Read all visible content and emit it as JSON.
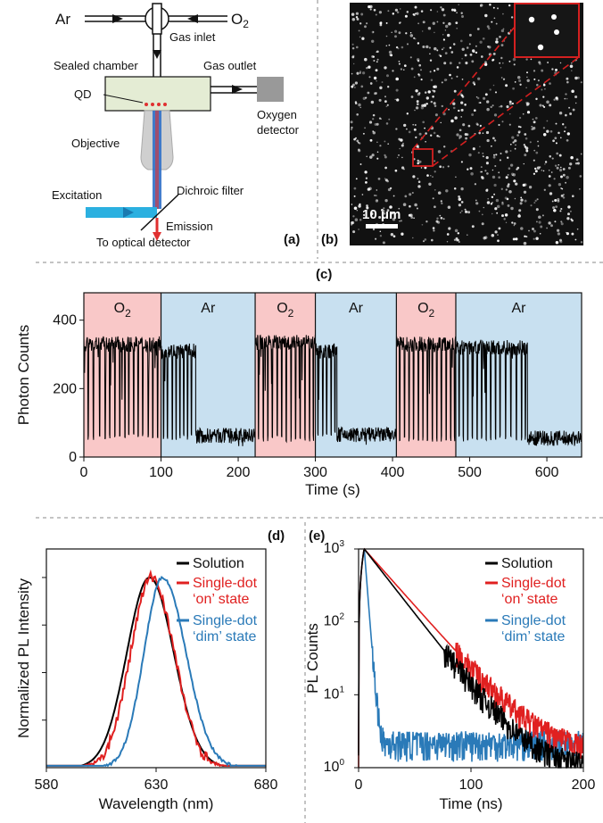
{
  "panel_labels": {
    "a": "(a)",
    "b": "(b)",
    "c": "(c)",
    "d": "(d)",
    "e": "(e)"
  },
  "panel_a": {
    "gas_in_left": "Ar",
    "gas_in_right": "O",
    "gas_in_right_sub": "2",
    "gas_inlet": "Gas inlet",
    "sealed_chamber": "Sealed chamber",
    "gas_outlet": "Gas outlet",
    "qd": "QD",
    "oxygen_detector_1": "Oxygen",
    "oxygen_detector_2": "detector",
    "objective": "Objective",
    "excitation": "Excitation",
    "dichroic_filter": "Dichroic filter",
    "emission": "Emission",
    "optical_detector": "To optical detector",
    "colors": {
      "chamber": "#e4ecd4",
      "beam": "#2bb0e0",
      "emission": "#e03030",
      "detector": "#999999"
    }
  },
  "panel_b": {
    "scale_bar": "10 μm",
    "colors": {
      "background": "#111111",
      "dots": "#ffffff",
      "inset_box": "#d42020"
    }
  },
  "chart_data": [
    {
      "id": "c",
      "type": "line",
      "xlabel": "Time (s)",
      "ylabel": "Photon Counts",
      "xlim": [
        0,
        645
      ],
      "ylim": [
        0,
        480
      ],
      "xticks": [
        0,
        100,
        200,
        300,
        400,
        500,
        600
      ],
      "yticks": [
        0,
        200,
        400
      ],
      "grid": false,
      "regions": [
        {
          "label": "O",
          "sub": "2",
          "start": 0,
          "end": 100,
          "color": "#f9c8c8"
        },
        {
          "label": "Ar",
          "sub": "",
          "start": 100,
          "end": 222,
          "color": "#c8e0f0"
        },
        {
          "label": "O",
          "sub": "2",
          "start": 222,
          "end": 300,
          "color": "#f9c8c8"
        },
        {
          "label": "Ar",
          "sub": "",
          "start": 300,
          "end": 405,
          "color": "#c8e0f0"
        },
        {
          "label": "O",
          "sub": "2",
          "start": 405,
          "end": 482,
          "color": "#f9c8c8"
        },
        {
          "label": "Ar",
          "sub": "",
          "start": 482,
          "end": 645,
          "color": "#c8e0f0"
        }
      ],
      "segments": [
        {
          "start": 0,
          "end": 100,
          "on_level": 330,
          "off_level": 50,
          "blinks": [
            5,
            12,
            20,
            27,
            33,
            40,
            46,
            53,
            58,
            64,
            70,
            76,
            83,
            89,
            95
          ]
        },
        {
          "start": 100,
          "end": 145,
          "on_level": 310,
          "off_level": 50,
          "blinks": [
            103,
            108,
            114,
            119,
            124,
            129,
            134,
            139
          ]
        },
        {
          "start": 145,
          "end": 222,
          "on_level": 62,
          "off_level": 45,
          "blinks": []
        },
        {
          "start": 222,
          "end": 300,
          "on_level": 335,
          "off_level": 45,
          "blinks": [
            226,
            232,
            238,
            244,
            250,
            256,
            262,
            268,
            274,
            280,
            286,
            292,
            297
          ]
        },
        {
          "start": 300,
          "end": 328,
          "on_level": 310,
          "off_level": 60,
          "blinks": [
            303,
            309,
            314,
            320,
            325
          ]
        },
        {
          "start": 328,
          "end": 405,
          "on_level": 65,
          "off_level": 45,
          "blinks": [
            345,
            358,
            372,
            388
          ]
        },
        {
          "start": 405,
          "end": 482,
          "on_level": 330,
          "off_level": 45,
          "blinks": [
            409,
            415,
            421,
            427,
            433,
            439,
            445,
            451,
            457,
            463,
            469,
            475,
            480
          ]
        },
        {
          "start": 482,
          "end": 575,
          "on_level": 320,
          "off_level": 45,
          "blinks": [
            486,
            491,
            497,
            503,
            509,
            515,
            521,
            527,
            533,
            539,
            546,
            553,
            560,
            567,
            572
          ]
        },
        {
          "start": 575,
          "end": 645,
          "on_level": 55,
          "off_level": 40,
          "blinks": []
        }
      ],
      "line_color": "#000000"
    },
    {
      "id": "d",
      "type": "line",
      "xlabel": "Wavelength (nm)",
      "ylabel": "Normalized PL Intensity",
      "xlim": [
        580,
        680
      ],
      "ylim": [
        0,
        1.15
      ],
      "xticks": [
        580,
        630,
        680
      ],
      "legend": "top-right",
      "series": [
        {
          "name": "Solution",
          "color": "#000000",
          "peak": 627,
          "width_left": 14.5,
          "width_right": 15.5
        },
        {
          "name": "Single-dot\n‘on’ state",
          "color": "#e02020",
          "peak": 628,
          "width_left": 13.5,
          "width_right": 14.5
        },
        {
          "name": "Single-dot\n‘dim’ state",
          "color": "#2a7ab8",
          "peak": 633,
          "width_left": 12,
          "width_right": 15
        }
      ]
    },
    {
      "id": "e",
      "type": "line",
      "xlabel": "Time (ns)",
      "ylabel": "PL Counts",
      "xlim": [
        0,
        200
      ],
      "ylog": true,
      "ylim": [
        1,
        1000
      ],
      "xticks": [
        0,
        100,
        200
      ],
      "yticks": [
        1,
        10,
        100,
        1000
      ],
      "legend": "top-right",
      "series": [
        {
          "name": "Solution",
          "color": "#000000",
          "peak_t": 5,
          "tau": 22,
          "floor": 1
        },
        {
          "name": "Single-dot\n‘on’ state",
          "color": "#e02020",
          "peak_t": 5,
          "tau": 25,
          "floor": 1.6
        },
        {
          "name": "Single-dot\n‘dim’ state",
          "color": "#2a7ab8",
          "peak_t": 5,
          "tau": 2.2,
          "floor": 2
        }
      ]
    }
  ]
}
